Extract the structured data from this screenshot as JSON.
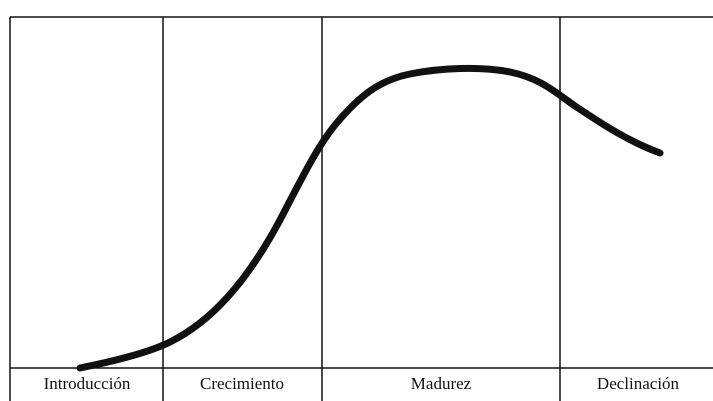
{
  "stages": [
    {
      "label": "Introducción"
    },
    {
      "label": "Crecimiento"
    },
    {
      "label": "Madurez"
    },
    {
      "label": "Declinación"
    }
  ]
}
